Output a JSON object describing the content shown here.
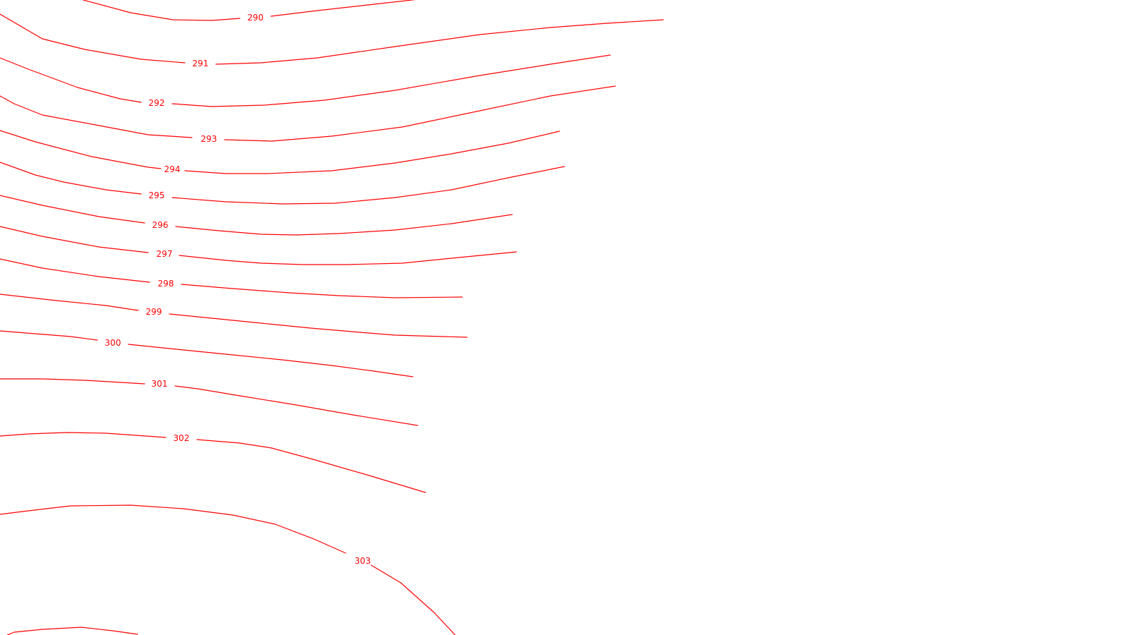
{
  "map": {
    "line_color": "#ff0000",
    "background": "#ffffff",
    "contours": [
      {
        "id": "290",
        "label": "290"
      },
      {
        "id": "291",
        "label": "291"
      },
      {
        "id": "292",
        "label": "292"
      },
      {
        "id": "293",
        "label": "293"
      },
      {
        "id": "294",
        "label": "294"
      },
      {
        "id": "295",
        "label": "295"
      },
      {
        "id": "296",
        "label": "296"
      },
      {
        "id": "297",
        "label": "297"
      },
      {
        "id": "298",
        "label": "298"
      },
      {
        "id": "299",
        "label": "299"
      },
      {
        "id": "300",
        "label": "300"
      },
      {
        "id": "301",
        "label": "301"
      },
      {
        "id": "302",
        "label": "302"
      },
      {
        "id": "303",
        "label": "303"
      },
      {
        "id": "unlabeled-bottom",
        "label": ""
      }
    ]
  }
}
